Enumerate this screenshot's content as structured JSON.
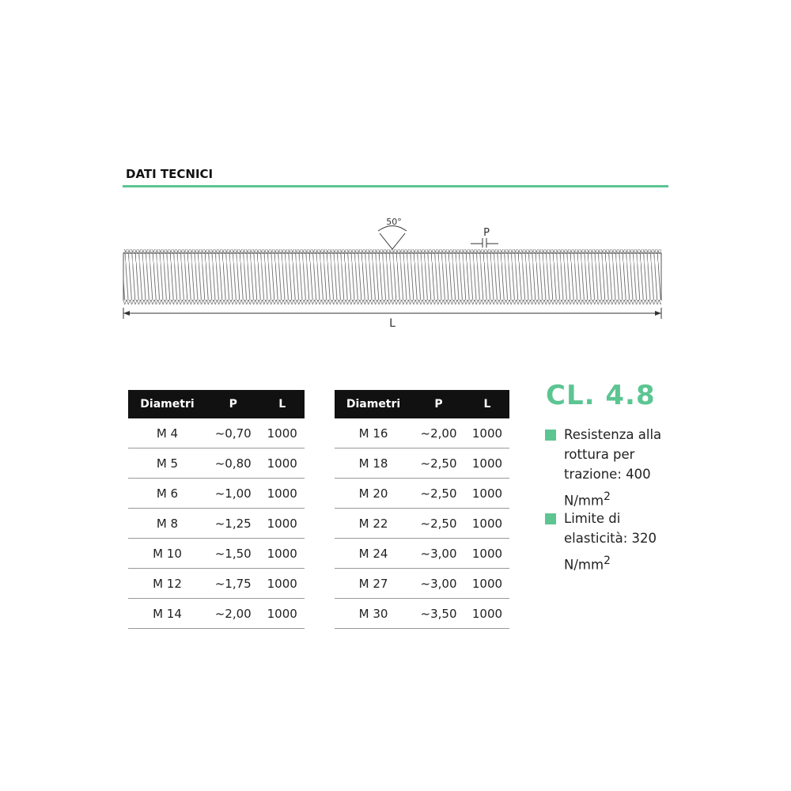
{
  "section_title": "DATI TECNICI",
  "diagram": {
    "angle_label": "50°",
    "pitch_label": "P",
    "length_label": "L"
  },
  "table_headers": [
    "Diametri",
    "P",
    "L"
  ],
  "table_left": [
    [
      "M 4",
      "~0,70",
      "1000"
    ],
    [
      "M 5",
      "~0,80",
      "1000"
    ],
    [
      "M 6",
      "~1,00",
      "1000"
    ],
    [
      "M 8",
      "~1,25",
      "1000"
    ],
    [
      "M 10",
      "~1,50",
      "1000"
    ],
    [
      "M 12",
      "~1,75",
      "1000"
    ],
    [
      "M 14",
      "~2,00",
      "1000"
    ]
  ],
  "table_right": [
    [
      "M 16",
      "~2,00",
      "1000"
    ],
    [
      "M 18",
      "~2,50",
      "1000"
    ],
    [
      "M 20",
      "~2,50",
      "1000"
    ],
    [
      "M 22",
      "~2,50",
      "1000"
    ],
    [
      "M 24",
      "~3,00",
      "1000"
    ],
    [
      "M 27",
      "~3,00",
      "1000"
    ],
    [
      "M 30",
      "~3,50",
      "1000"
    ]
  ],
  "class_label": "CL. 4.8",
  "specs": [
    {
      "text": "Resistenza alla rottura per trazione: 400",
      "unit": "N/mm",
      "sup": "2"
    },
    {
      "text": "Limite di elasticità: 320",
      "unit": "N/mm",
      "sup": "2"
    }
  ],
  "accent_color": "#5cc592"
}
